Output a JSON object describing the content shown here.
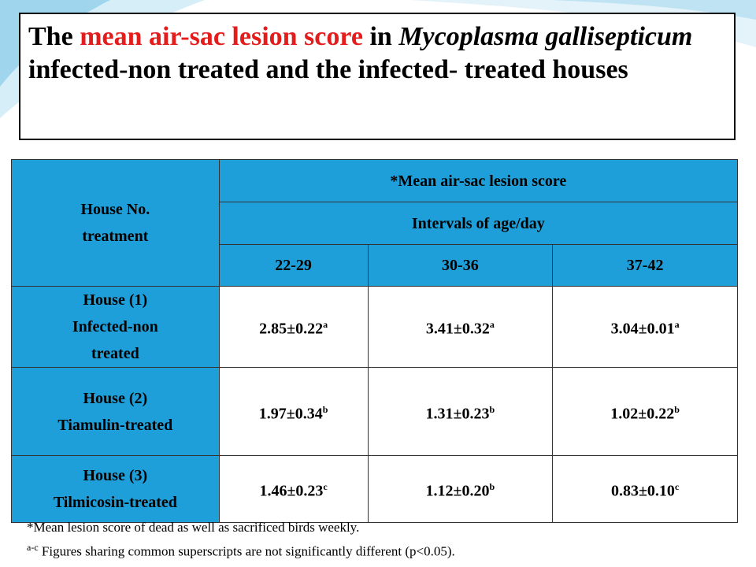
{
  "title": [
    "The ",
    "mean air-sac lesion score",
    " in ",
    "Mycoplasma gallisepticum",
    " infected-non treated and the infected- treated houses"
  ],
  "table": {
    "header": {
      "row_label": [
        "House No.",
        "treatment"
      ],
      "group": "*Mean air-sac lesion score",
      "subgroup": "Intervals of age/day",
      "columns": [
        "22-29",
        "30-36",
        "37-42"
      ]
    },
    "rows": [
      {
        "label": [
          "House (1)",
          "Infected-non",
          "treated"
        ],
        "cells": [
          {
            "value": "2.85±0.22",
            "sup": "a"
          },
          {
            "value": "3.41±0.32",
            "sup": "a"
          },
          {
            "value": "3.04±0.01",
            "sup": "a"
          }
        ]
      },
      {
        "label": [
          "House (2)",
          "Tiamulin-treated"
        ],
        "cells": [
          {
            "value": "1.97±0.34",
            "sup": "b"
          },
          {
            "value": "1.31±0.23",
            "sup": "b"
          },
          {
            "value": "1.02±0.22",
            "sup": "b"
          }
        ]
      },
      {
        "label": [
          "House (3)",
          "Tilmicosin-treated"
        ],
        "cells": [
          {
            "value": "1.46±0.23",
            "sup": "c"
          },
          {
            "value": "1.12±0.20",
            "sup": "b"
          },
          {
            "value": "0.83±0.10",
            "sup": "c"
          }
        ]
      }
    ]
  },
  "footnotes": [
    {
      "text": "*Mean lesion score of dead as well as sacrificed birds weekly."
    },
    {
      "sup": "a-c",
      "text": " Figures sharing common superscripts are not significantly different (p<0.05)."
    }
  ]
}
